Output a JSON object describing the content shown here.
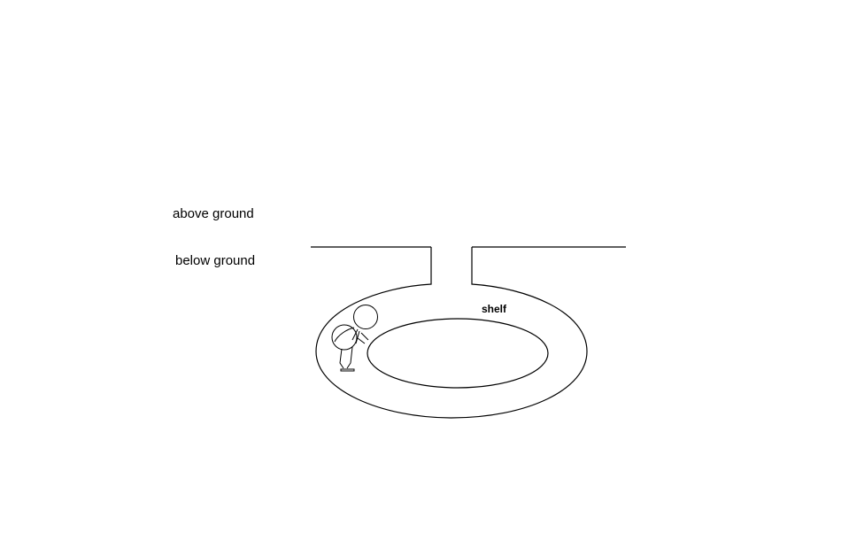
{
  "labels": {
    "above_ground": "above ground",
    "below_ground": "below ground",
    "shelf": "shelf"
  },
  "colors": {
    "background": "#ffffff",
    "stroke": "#000000"
  }
}
